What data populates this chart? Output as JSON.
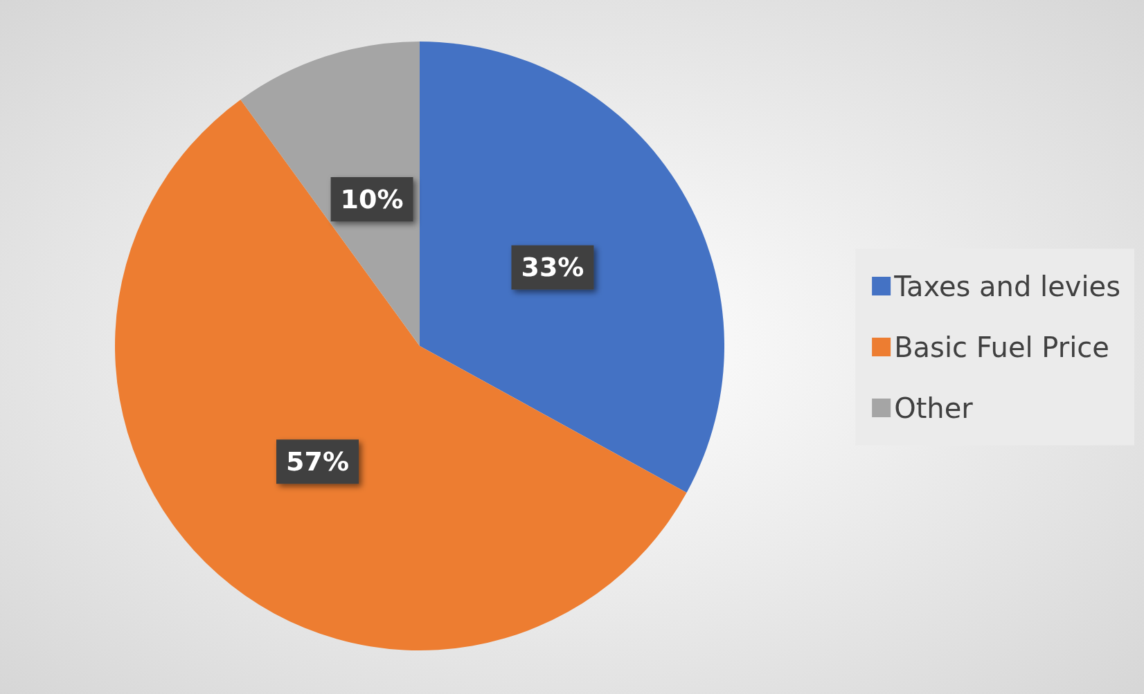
{
  "chart_data": {
    "type": "pie",
    "categories": [
      "Taxes and levies",
      "Basic Fuel Price",
      "Other"
    ],
    "values": [
      33,
      57,
      10
    ],
    "colors": [
      "#4472c4",
      "#ed7d31",
      "#a5a5a5"
    ],
    "value_labels": [
      "33%",
      "57%",
      "10%"
    ],
    "legend": "right"
  }
}
